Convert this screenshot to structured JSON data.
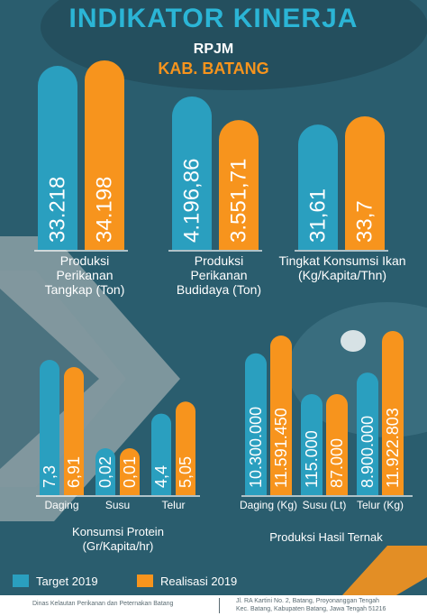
{
  "header": {
    "title": "INDIKATOR KINERJA",
    "subtitle": "RPJM",
    "place": "KAB. BATANG"
  },
  "legend": {
    "target": "Target 2019",
    "realisasi": "Realisasi 2019"
  },
  "colors": {
    "background": "#2a5d6e",
    "target": "#2a9fbf",
    "realisasi": "#f7941d",
    "title": "#2bb5d6"
  },
  "footer": {
    "left": "Dinas Kelautan Perikanan dan Peternakan Batang",
    "right_line1": "Jl. RA Kartini No. 2, Batang, Proyonanggan Tengah",
    "right_line2": "Kec. Batang, Kabupaten Batang, Jawa Tengah 51216"
  },
  "chart_data": [
    {
      "type": "bar",
      "categories": [
        "Produksi Perikanan Tangkap (Ton)"
      ],
      "series": [
        {
          "name": "Target 2019",
          "values": [
            33218
          ]
        },
        {
          "name": "Realisasi 2019",
          "values": [
            34198
          ]
        }
      ],
      "value_labels": {
        "Target 2019": [
          "33.218"
        ],
        "Realisasi 2019": [
          "34.198"
        ]
      },
      "category_label_lines": [
        [
          "Produksi",
          "Perikanan",
          "Tangkap (Ton)"
        ]
      ]
    },
    {
      "type": "bar",
      "categories": [
        "Produksi Perikanan Budidaya (Ton)"
      ],
      "series": [
        {
          "name": "Target 2019",
          "values": [
            4196.86
          ]
        },
        {
          "name": "Realisasi 2019",
          "values": [
            3551.71
          ]
        }
      ],
      "value_labels": {
        "Target 2019": [
          "4.196,86"
        ],
        "Realisasi 2019": [
          "3.551,71"
        ]
      },
      "category_label_lines": [
        [
          "Produksi",
          "Perikanan",
          "Budidaya (Ton)"
        ]
      ]
    },
    {
      "type": "bar",
      "categories": [
        "Tingkat Konsumsi Ikan (Kg/Kapita/Thn)"
      ],
      "series": [
        {
          "name": "Target 2019",
          "values": [
            31.61
          ]
        },
        {
          "name": "Realisasi 2019",
          "values": [
            33.7
          ]
        }
      ],
      "value_labels": {
        "Target 2019": [
          "31,61"
        ],
        "Realisasi 2019": [
          "33,7"
        ]
      },
      "category_label_lines": [
        [
          "Tingkat Konsumsi Ikan",
          "(Kg/Kapita/Thn)"
        ]
      ]
    },
    {
      "type": "bar",
      "title": "Konsumsi Protein (Gr/Kapita/hr)",
      "title_lines": [
        "Konsumsi Protein",
        "(Gr/Kapita/hr)"
      ],
      "categories": [
        "Daging",
        "Susu",
        "Telur"
      ],
      "series": [
        {
          "name": "Target 2019",
          "values": [
            7.3,
            0.02,
            4.4
          ]
        },
        {
          "name": "Realisasi 2019",
          "values": [
            6.91,
            0.01,
            5.05
          ]
        }
      ],
      "value_labels": {
        "Target 2019": [
          "7,3",
          "0,02",
          "4,4"
        ],
        "Realisasi 2019": [
          "6,91",
          "0,01",
          "5,05"
        ]
      }
    },
    {
      "type": "bar",
      "title": "Produksi Hasil Ternak",
      "categories": [
        "Daging (Kg)",
        "Susu (Lt)",
        "Telur (Kg)"
      ],
      "series": [
        {
          "name": "Target 2019",
          "values": [
            10300000,
            115000,
            8900000
          ]
        },
        {
          "name": "Realisasi 2019",
          "values": [
            11591450,
            87000,
            11922803
          ]
        }
      ],
      "value_labels": {
        "Target 2019": [
          "10.300.000",
          "115.000",
          "8.900.000"
        ],
        "Realisasi 2019": [
          "11.591.450",
          "87.000",
          "11.922.803"
        ]
      }
    }
  ]
}
